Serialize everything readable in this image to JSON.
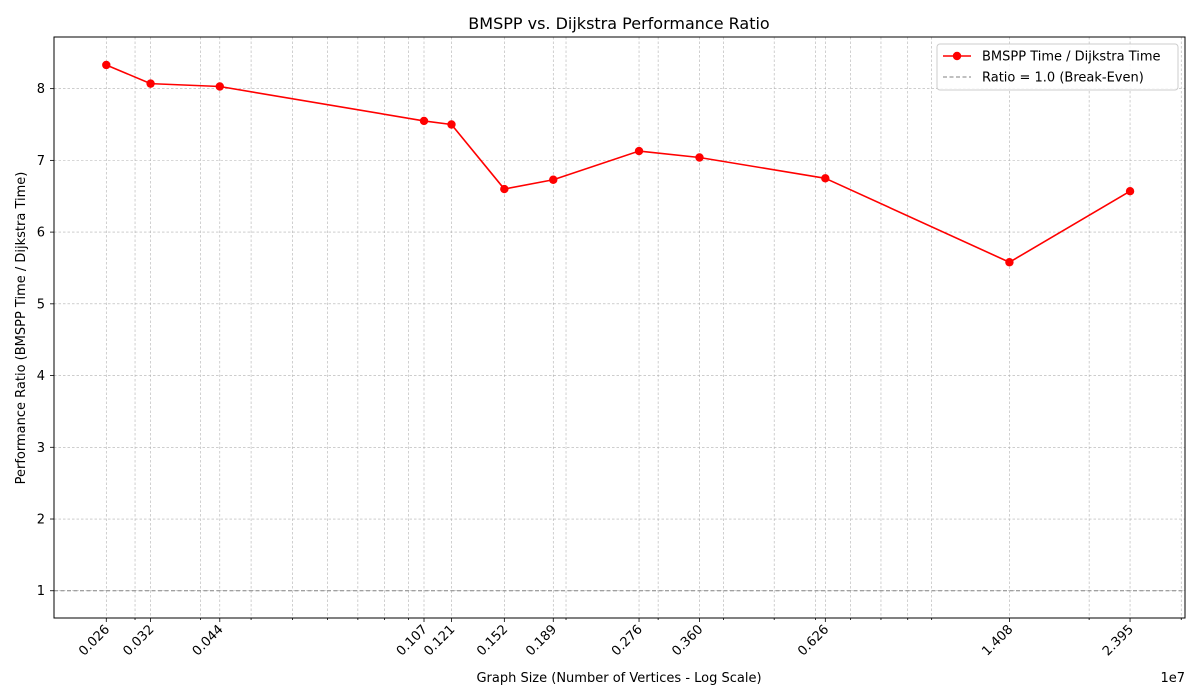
{
  "chart_data": {
    "type": "line",
    "title": "BMSPP vs. Dijkstra Performance Ratio",
    "xlabel": "Graph Size (Number of Vertices - Log Scale)",
    "ylabel": "Performance Ratio (BMSPP Time / Dijkstra Time)",
    "x_scale": "log",
    "x_offset_label": "1e7",
    "xlim": [
      210000,
      30500000
    ],
    "ylim": [
      0.62,
      8.72
    ],
    "x_tick_values": [
      264346,
      321270,
      435666,
      1070376,
      1207945,
      1524453,
      1890815,
      2758119,
      3598623,
      6262104,
      14081816,
      23947347
    ],
    "x_tick_labels": [
      "0.026",
      "0.032",
      "0.044",
      "0.107",
      "0.121",
      "0.152",
      "0.189",
      "0.276",
      "0.360",
      "0.626",
      "1.408",
      "2.395"
    ],
    "y_ticks": [
      1,
      2,
      3,
      4,
      5,
      6,
      7,
      8
    ],
    "grid": true,
    "legend_position": "top-right",
    "series": [
      {
        "name": "BMSPP Time / Dijkstra Time",
        "color": "#ff0000",
        "marker": "circle",
        "x": [
          264346,
          321270,
          435666,
          1070376,
          1207945,
          1524453,
          1890815,
          2758119,
          3598623,
          6262104,
          14081816,
          23947347
        ],
        "y": [
          8.33,
          8.07,
          8.03,
          7.55,
          7.5,
          6.6,
          6.73,
          7.13,
          7.04,
          6.75,
          5.58,
          6.57
        ]
      }
    ],
    "reference_line": {
      "name": "Ratio = 1.0 (Break-Even)",
      "y": 1.0,
      "color": "#808080",
      "style": "dashed"
    }
  }
}
